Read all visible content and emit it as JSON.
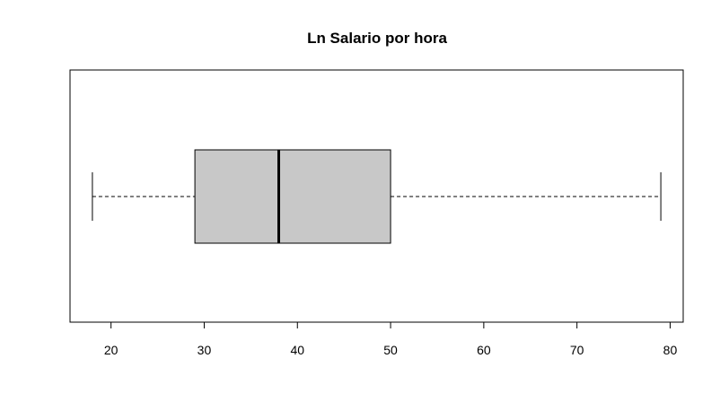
{
  "chart_data": {
    "type": "boxplot",
    "orientation": "horizontal",
    "title": "Ln Salario por hora",
    "xlabel": "",
    "ylabel": "",
    "xlim": [
      15.6,
      81.4
    ],
    "ticks": [
      20,
      30,
      40,
      50,
      60,
      70,
      80
    ],
    "tick_labels": [
      "20",
      "30",
      "40",
      "50",
      "60",
      "70",
      "80"
    ],
    "box": {
      "min": 18,
      "q1": 29,
      "median": 38,
      "q3": 50,
      "max": 79
    },
    "colors": {
      "box_fill": "#c8c8c8",
      "stroke": "#000000"
    },
    "grid": false,
    "legend": "none"
  }
}
